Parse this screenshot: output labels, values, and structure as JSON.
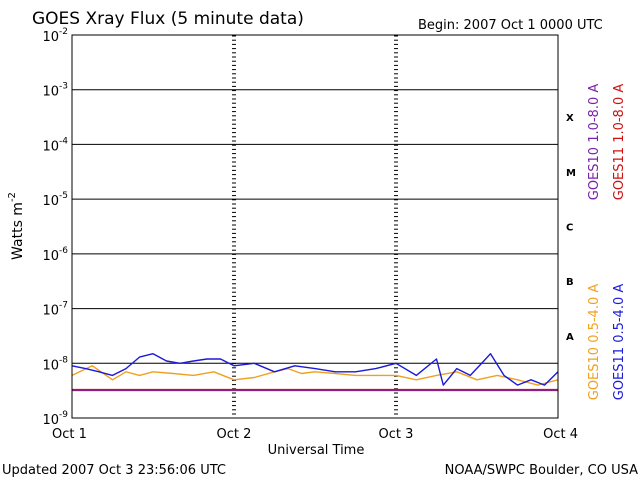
{
  "chart_data": {
    "type": "line",
    "title": "GOES Xray Flux (5 minute data)",
    "begin_label": "Begin:  2007 Oct 1 0000 UTC",
    "ylabel": "Watts m",
    "ylabel_sup": "-2",
    "xlabel": "Universal Time",
    "footer_left": "Updated 2007 Oct  3 23:56:06 UTC",
    "footer_right": "NOAA/SWPC Boulder, CO USA",
    "y_scale": "log",
    "ylim": [
      1e-09,
      0.01
    ],
    "y_ticks": [
      {
        "value": 0.01,
        "base": "10",
        "exp": "-2"
      },
      {
        "value": 0.001,
        "base": "10",
        "exp": "-3"
      },
      {
        "value": 0.0001,
        "base": "10",
        "exp": "-4"
      },
      {
        "value": 1e-05,
        "base": "10",
        "exp": "-5"
      },
      {
        "value": 1e-06,
        "base": "10",
        "exp": "-6"
      },
      {
        "value": 1e-07,
        "base": "10",
        "exp": "-7"
      },
      {
        "value": 1e-08,
        "base": "10",
        "exp": "-8"
      },
      {
        "value": 1e-09,
        "base": "10",
        "exp": "-9"
      }
    ],
    "flare_classes": [
      {
        "label": "X",
        "low": 0.0001,
        "high": 0.001
      },
      {
        "label": "M",
        "low": 1e-05,
        "high": 0.0001
      },
      {
        "label": "C",
        "low": 1e-06,
        "high": 1e-05
      },
      {
        "label": "B",
        "low": 1e-07,
        "high": 1e-06
      },
      {
        "label": "A",
        "low": 1e-08,
        "high": 1e-07
      }
    ],
    "xlim": [
      "2007-10-01T00:00",
      "2007-10-04T00:00"
    ],
    "x_ticks": [
      {
        "value": "2007-10-01T00:00",
        "label": "Oct 1"
      },
      {
        "value": "2007-10-02T00:00",
        "label": "Oct 2"
      },
      {
        "value": "2007-10-03T00:00",
        "label": "Oct 3"
      },
      {
        "value": "2007-10-04T00:00",
        "label": "Oct 4"
      }
    ],
    "legend_placement": "right",
    "series": [
      {
        "name": "GOES10 1.0-8.0 A",
        "color": "#7722aa",
        "legend_group": "long",
        "x": [
          "2007-10-01T00:00",
          "2007-10-04T00:00"
        ],
        "y": [
          3.2e-09,
          3.2e-09
        ]
      },
      {
        "name": "GOES11 1.0-8.0 A",
        "color": "#cc1111",
        "legend_group": "long",
        "x": [
          "2007-10-01T00:00",
          "2007-10-04T00:00"
        ],
        "y": [
          3.3e-09,
          3.3e-09
        ]
      },
      {
        "name": "GOES10 0.5-4.0 A",
        "color": "#f0a020",
        "legend_group": "short",
        "x": [
          "2007-10-01T00:00",
          "2007-10-01T03:00",
          "2007-10-01T06:00",
          "2007-10-01T08:00",
          "2007-10-01T10:00",
          "2007-10-01T12:00",
          "2007-10-01T15:00",
          "2007-10-01T18:00",
          "2007-10-01T21:00",
          "2007-10-02T00:00",
          "2007-10-02T03:00",
          "2007-10-02T06:00",
          "2007-10-02T08:00",
          "2007-10-02T10:00",
          "2007-10-02T12:00",
          "2007-10-02T15:00",
          "2007-10-02T18:00",
          "2007-10-02T21:00",
          "2007-10-03T00:00",
          "2007-10-03T03:00",
          "2007-10-03T06:00",
          "2007-10-03T09:00",
          "2007-10-03T12:00",
          "2007-10-03T15:00",
          "2007-10-03T18:00",
          "2007-10-03T21:00",
          "2007-10-04T00:00"
        ],
        "y": [
          6e-09,
          9e-09,
          5e-09,
          7e-09,
          6e-09,
          7e-09,
          6.5e-09,
          6e-09,
          7e-09,
          5e-09,
          5.5e-09,
          7e-09,
          8e-09,
          6.5e-09,
          7e-09,
          6.5e-09,
          6e-09,
          6e-09,
          6e-09,
          5e-09,
          6e-09,
          7e-09,
          5e-09,
          6e-09,
          5e-09,
          4e-09,
          5e-09
        ]
      },
      {
        "name": "GOES11 0.5-4.0 A",
        "color": "#1a1ad8",
        "legend_group": "short",
        "x": [
          "2007-10-01T00:00",
          "2007-10-01T02:00",
          "2007-10-01T04:00",
          "2007-10-01T06:00",
          "2007-10-01T08:00",
          "2007-10-01T10:00",
          "2007-10-01T12:00",
          "2007-10-01T14:00",
          "2007-10-01T16:00",
          "2007-10-01T18:00",
          "2007-10-01T20:00",
          "2007-10-01T22:00",
          "2007-10-02T00:00",
          "2007-10-02T03:00",
          "2007-10-02T06:00",
          "2007-10-02T09:00",
          "2007-10-02T12:00",
          "2007-10-02T15:00",
          "2007-10-02T18:00",
          "2007-10-02T21:00",
          "2007-10-03T00:00",
          "2007-10-03T03:00",
          "2007-10-03T06:00",
          "2007-10-03T07:00",
          "2007-10-03T09:00",
          "2007-10-03T11:00",
          "2007-10-03T13:00",
          "2007-10-03T14:00",
          "2007-10-03T16:00",
          "2007-10-03T18:00",
          "2007-10-03T20:00",
          "2007-10-03T22:00",
          "2007-10-04T00:00"
        ],
        "y": [
          9e-09,
          8e-09,
          7e-09,
          6e-09,
          8e-09,
          1.3e-08,
          1.5e-08,
          1.1e-08,
          1e-08,
          1.1e-08,
          1.2e-08,
          1.2e-08,
          9e-09,
          1e-08,
          7e-09,
          9e-09,
          8e-09,
          7e-09,
          7e-09,
          8e-09,
          1e-08,
          6e-09,
          1.2e-08,
          4e-09,
          8e-09,
          6e-09,
          1.1e-08,
          1.5e-08,
          6e-09,
          4e-09,
          5e-09,
          4e-09,
          7e-09
        ]
      }
    ]
  }
}
